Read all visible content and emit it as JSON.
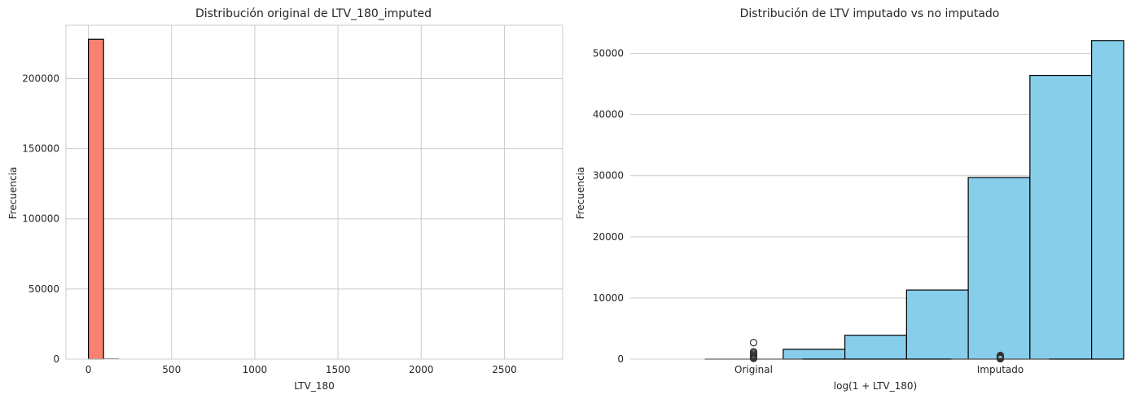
{
  "chart_data": [
    {
      "type": "bar",
      "title": "Distribución original de LTV_180_imputed",
      "xlabel": "LTV_180",
      "ylabel": "Frecuencia",
      "xlim": [
        -135,
        2850
      ],
      "ylim": [
        0,
        238000
      ],
      "xticks": [
        0,
        500,
        1000,
        1500,
        2000,
        2500
      ],
      "xtick_labels": [
        "0",
        "500",
        "1000",
        "1500",
        "2000",
        "2500"
      ],
      "yticks": [
        0,
        50000,
        100000,
        150000,
        200000
      ],
      "ytick_labels": [
        "0",
        "50000",
        "100000",
        "150000",
        "200000"
      ],
      "bin_edges": [
        0,
        91,
        182,
        273,
        364,
        455,
        546,
        637,
        728,
        819,
        910,
        1001,
        1092,
        1183,
        1274,
        1365,
        1456,
        1547,
        1638,
        1729,
        1820,
        1911,
        2002,
        2093,
        2184,
        2275,
        2366,
        2457,
        2548,
        2639,
        2730
      ],
      "values": [
        228000,
        300,
        100,
        50,
        30,
        20,
        10,
        5,
        5,
        3,
        2,
        2,
        1,
        1,
        1,
        1,
        0,
        0,
        1,
        0,
        0,
        1,
        0,
        0,
        0,
        0,
        0,
        0,
        0,
        1
      ],
      "color": "#fa8072",
      "grid": true,
      "legend": "none"
    },
    {
      "type": "bar",
      "title": "Distribución de LTV imputado vs no imputado",
      "xlabel": "log(1 + LTV_180)",
      "ylabel": "Frecuencia",
      "xlim": [
        -0.5,
        1.5
      ],
      "ylim": [
        0,
        54600
      ],
      "xticks": [
        0,
        1
      ],
      "xtick_labels": [
        "Original",
        "Imputado"
      ],
      "yticks": [
        0,
        10000,
        20000,
        30000,
        40000,
        50000
      ],
      "ytick_labels": [
        "0",
        "10000",
        "20000",
        "30000",
        "40000",
        "50000"
      ],
      "bin_edges": [
        -0.38,
        -0.13,
        0.12,
        0.37,
        0.62,
        0.87,
        1.12,
        1.37,
        1.62
      ],
      "values": [
        0,
        0,
        1600,
        3900,
        11300,
        29700,
        46400,
        52100
      ],
      "color": "#87ceeb",
      "grid": true,
      "legend": "none",
      "boxplot_outliers": [
        {
          "category": "Original",
          "values": [
            2700,
            1200,
            1000,
            800,
            600,
            450,
            300,
            200,
            120
          ]
        },
        {
          "category": "Imputado",
          "values": [
            600,
            480,
            380,
            280,
            200,
            130,
            70
          ]
        }
      ]
    }
  ]
}
